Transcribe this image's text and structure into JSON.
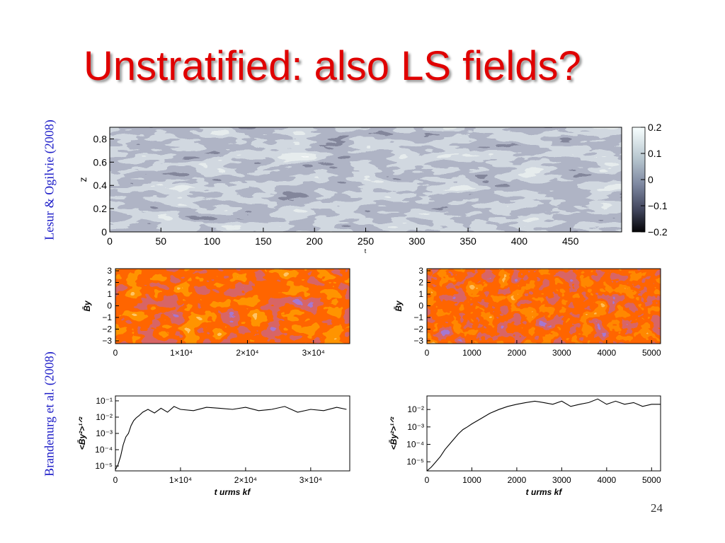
{
  "slide": {
    "title": "Unstratified: also LS fields?",
    "citation_top": "Lesur & Ogilvie (2008)",
    "citation_bottom": "Brandenurg et al. (2008)",
    "page_number": "24"
  },
  "chart_data": [
    {
      "type": "heatmap",
      "id": "lesur-spacetime",
      "x_ticks": [
        "0",
        "50",
        "100",
        "150",
        "200",
        "250",
        "300",
        "350",
        "400",
        "450"
      ],
      "xlabel": "t",
      "y_ticks": [
        "0",
        "0.2",
        "0.4",
        "0.6",
        "0.8"
      ],
      "ylabel": "z",
      "colorbar_ticks": [
        "0.2",
        "0.1",
        "0",
        "−0.1",
        "−0.2"
      ],
      "colormap": [
        "#0c0c14",
        "#3a3d55",
        "#6e7590",
        "#a3b0c0",
        "#c9d6da",
        "#f4fbfb"
      ]
    },
    {
      "type": "heatmap",
      "id": "brandenburg-by-left",
      "x_ticks": [
        "0",
        "1×10⁴",
        "2×10⁴",
        "3×10⁴"
      ],
      "y_ticks": [
        "3",
        "2",
        "1",
        "0",
        "−1",
        "−2",
        "−3"
      ],
      "ylabel": "B̄y",
      "colormap": [
        "#2020c0",
        "#6030a0",
        "#b02020",
        "#ff2000",
        "#ff7020",
        "#d8e040",
        "#ffff80"
      ]
    },
    {
      "type": "heatmap",
      "id": "brandenburg-by-right",
      "x_ticks": [
        "0",
        "1000",
        "2000",
        "3000",
        "4000",
        "5000"
      ],
      "y_ticks": [
        "3",
        "2",
        "1",
        "0",
        "−1",
        "−2",
        "−3"
      ],
      "ylabel": "B̄y",
      "colormap": [
        "#2020c0",
        "#6030a0",
        "#b02020",
        "#ff2000",
        "#ff7020",
        "#d8e040",
        "#ffff80"
      ]
    },
    {
      "type": "line",
      "id": "brandenburg-rms-left",
      "x_ticks": [
        "0",
        "1×10⁴",
        "2×10⁴",
        "3×10⁴"
      ],
      "y_ticks": [
        "10⁻¹",
        "10⁻²",
        "10⁻³",
        "10⁻⁴",
        "10⁻⁵"
      ],
      "yscale": "log",
      "xlabel": "t  urms  kf",
      "ylabel": "<B̄y²>¹ᐟ²",
      "xlim": [
        0,
        36000
      ],
      "ylim": [
        5e-06,
        0.2
      ],
      "series": [
        {
          "x": [
            0,
            400,
            800,
            1200,
            1600,
            2000,
            2400,
            2800,
            3200,
            3600,
            4200,
            5000,
            6000,
            7000,
            8000,
            9000,
            10000,
            12000,
            14000,
            16000,
            18000,
            20000,
            22000,
            24000,
            26000,
            28000,
            30000,
            32000,
            34000,
            35500
          ],
          "y": [
            6e-06,
            1.2e-05,
            4e-05,
            0.0002,
            0.0006,
            0.001,
            0.003,
            0.006,
            0.009,
            0.012,
            0.02,
            0.03,
            0.018,
            0.035,
            0.02,
            0.045,
            0.03,
            0.025,
            0.04,
            0.035,
            0.03,
            0.04,
            0.025,
            0.03,
            0.045,
            0.02,
            0.03,
            0.025,
            0.04,
            0.03
          ]
        }
      ]
    },
    {
      "type": "line",
      "id": "brandenburg-rms-right",
      "x_ticks": [
        "0",
        "1000",
        "2000",
        "3000",
        "4000",
        "5000"
      ],
      "y_ticks": [
        "10⁻²",
        "10⁻³",
        "10⁻⁴",
        "10⁻⁵"
      ],
      "yscale": "log",
      "xlabel": "t  urms  kf",
      "ylabel": "<B̄y²>¹ᐟ²",
      "xlim": [
        0,
        5200
      ],
      "ylim": [
        3e-06,
        0.06
      ],
      "series": [
        {
          "x": [
            0,
            100,
            200,
            300,
            400,
            500,
            600,
            700,
            800,
            900,
            1000,
            1200,
            1400,
            1600,
            1800,
            2000,
            2200,
            2400,
            2600,
            2800,
            3000,
            3200,
            3400,
            3600,
            3800,
            4000,
            4200,
            4400,
            4600,
            4800,
            5000,
            5200
          ],
          "y": [
            3e-06,
            5e-06,
            1e-05,
            2e-05,
            5e-05,
            0.0001,
            0.0002,
            0.0004,
            0.0007,
            0.001,
            0.0015,
            0.003,
            0.006,
            0.01,
            0.015,
            0.02,
            0.025,
            0.03,
            0.025,
            0.02,
            0.03,
            0.015,
            0.02,
            0.025,
            0.04,
            0.02,
            0.03,
            0.02,
            0.025,
            0.015,
            0.02,
            0.02
          ]
        }
      ]
    }
  ]
}
